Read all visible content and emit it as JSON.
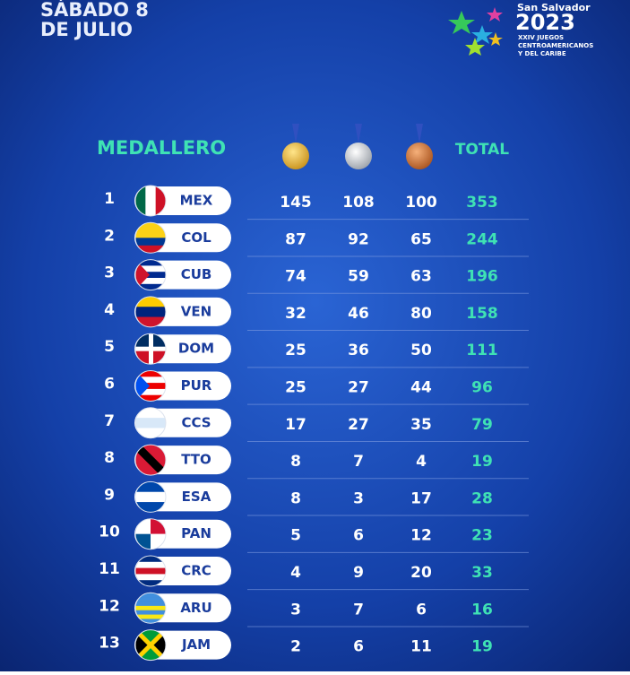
{
  "header": {
    "date_line1": "SÁBADO 8",
    "date_line2": "DE JULIO"
  },
  "logo": {
    "city": "San Salvador",
    "year": "2023",
    "line1": "XXIV JUEGOS",
    "line2": "CENTROAMERICANOS",
    "line3": "Y DEL CARIBE"
  },
  "table": {
    "title": "MEDALLERO",
    "total_header": "TOTAL",
    "rows": [
      [
        1,
        "MEX",
        145,
        108,
        100,
        353
      ],
      [
        2,
        "COL",
        87,
        92,
        65,
        244
      ],
      [
        3,
        "CUB",
        74,
        59,
        63,
        196
      ],
      [
        4,
        "VEN",
        32,
        46,
        80,
        158
      ],
      [
        5,
        "DOM",
        25,
        36,
        50,
        111
      ],
      [
        6,
        "PUR",
        25,
        27,
        44,
        96
      ],
      [
        7,
        "CCS",
        17,
        27,
        35,
        79
      ],
      [
        8,
        "TTO",
        8,
        7,
        4,
        19
      ],
      [
        9,
        "ESA",
        8,
        3,
        17,
        28
      ],
      [
        10,
        "PAN",
        5,
        6,
        12,
        23
      ],
      [
        11,
        "CRC",
        4,
        9,
        20,
        33
      ],
      [
        12,
        "ARU",
        3,
        7,
        6,
        16
      ],
      [
        13,
        "JAM",
        2,
        6,
        11,
        19
      ]
    ]
  }
}
